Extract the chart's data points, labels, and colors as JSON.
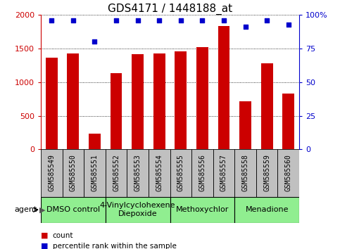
{
  "title": "GDS4171 / 1448188_at",
  "samples": [
    "GSM585549",
    "GSM585550",
    "GSM585551",
    "GSM585552",
    "GSM585553",
    "GSM585554",
    "GSM585555",
    "GSM585556",
    "GSM585557",
    "GSM585558",
    "GSM585559",
    "GSM585560"
  ],
  "counts": [
    1360,
    1430,
    230,
    1130,
    1420,
    1430,
    1460,
    1520,
    1840,
    720,
    1280,
    830
  ],
  "percentiles": [
    96,
    96,
    80,
    96,
    96,
    96,
    96,
    96,
    96,
    91,
    96,
    93
  ],
  "bar_color": "#cc0000",
  "dot_color": "#0000cc",
  "ylim_left": [
    0,
    2000
  ],
  "ylim_right": [
    0,
    100
  ],
  "yticks_left": [
    0,
    500,
    1000,
    1500,
    2000
  ],
  "yticks_right": [
    0,
    25,
    50,
    75,
    100
  ],
  "ytick_labels_right": [
    "0",
    "25",
    "50",
    "75",
    "100%"
  ],
  "agent_groups": [
    {
      "label": "DMSO control",
      "start": 0,
      "end": 2
    },
    {
      "label": "4-Vinylcyclohexene\nDiepoxide",
      "start": 3,
      "end": 5
    },
    {
      "label": "Methoxychlor",
      "start": 6,
      "end": 8
    },
    {
      "label": "Menadione",
      "start": 9,
      "end": 11
    }
  ],
  "agent_box_color": "#90ee90",
  "sample_box_color": "#c0c0c0",
  "legend_count_label": "count",
  "legend_pct_label": "percentile rank within the sample",
  "title_fontsize": 11,
  "tick_fontsize": 8,
  "sample_label_fontsize": 7,
  "agent_label_fontsize": 8,
  "bar_width": 0.55
}
